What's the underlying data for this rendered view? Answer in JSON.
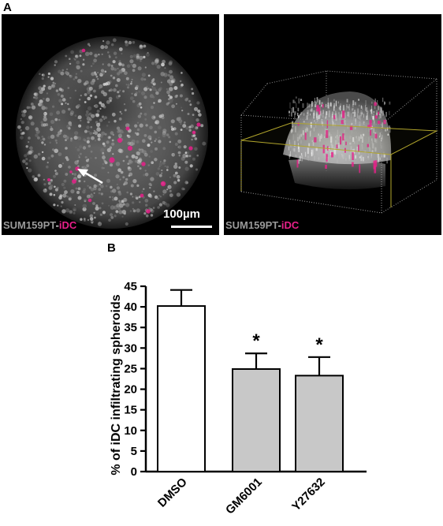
{
  "panels": {
    "a_label": "A",
    "b_label": "B"
  },
  "micrographs": {
    "left": {
      "caption_cell": "SUM159PT",
      "caption_sep": "-",
      "caption_idc": "iDC",
      "scale_bar_label": "100µm"
    },
    "right": {
      "caption_cell": "SUM159PT",
      "caption_sep": "-",
      "caption_idc": "iDC"
    }
  },
  "colors": {
    "idc_magenta": "#e8208a",
    "cell_gray": "#9a9a9a",
    "bar_dmso": "#ffffff",
    "bar_treated": "#c8c8c8"
  },
  "chart_data": {
    "type": "bar",
    "title": "",
    "xlabel": "",
    "ylabel": "% of iDC infiltrating spheroids",
    "categories": [
      "DMSO",
      "GM6001",
      "Y27632"
    ],
    "values": [
      40.2,
      24.9,
      23.3
    ],
    "error_up": [
      3.9,
      3.8,
      4.5
    ],
    "significance": [
      "",
      "*",
      "*"
    ],
    "ylim": [
      0,
      45
    ],
    "yticks": [
      0,
      5,
      10,
      15,
      20,
      25,
      30,
      35,
      40,
      45
    ],
    "grid": false
  }
}
